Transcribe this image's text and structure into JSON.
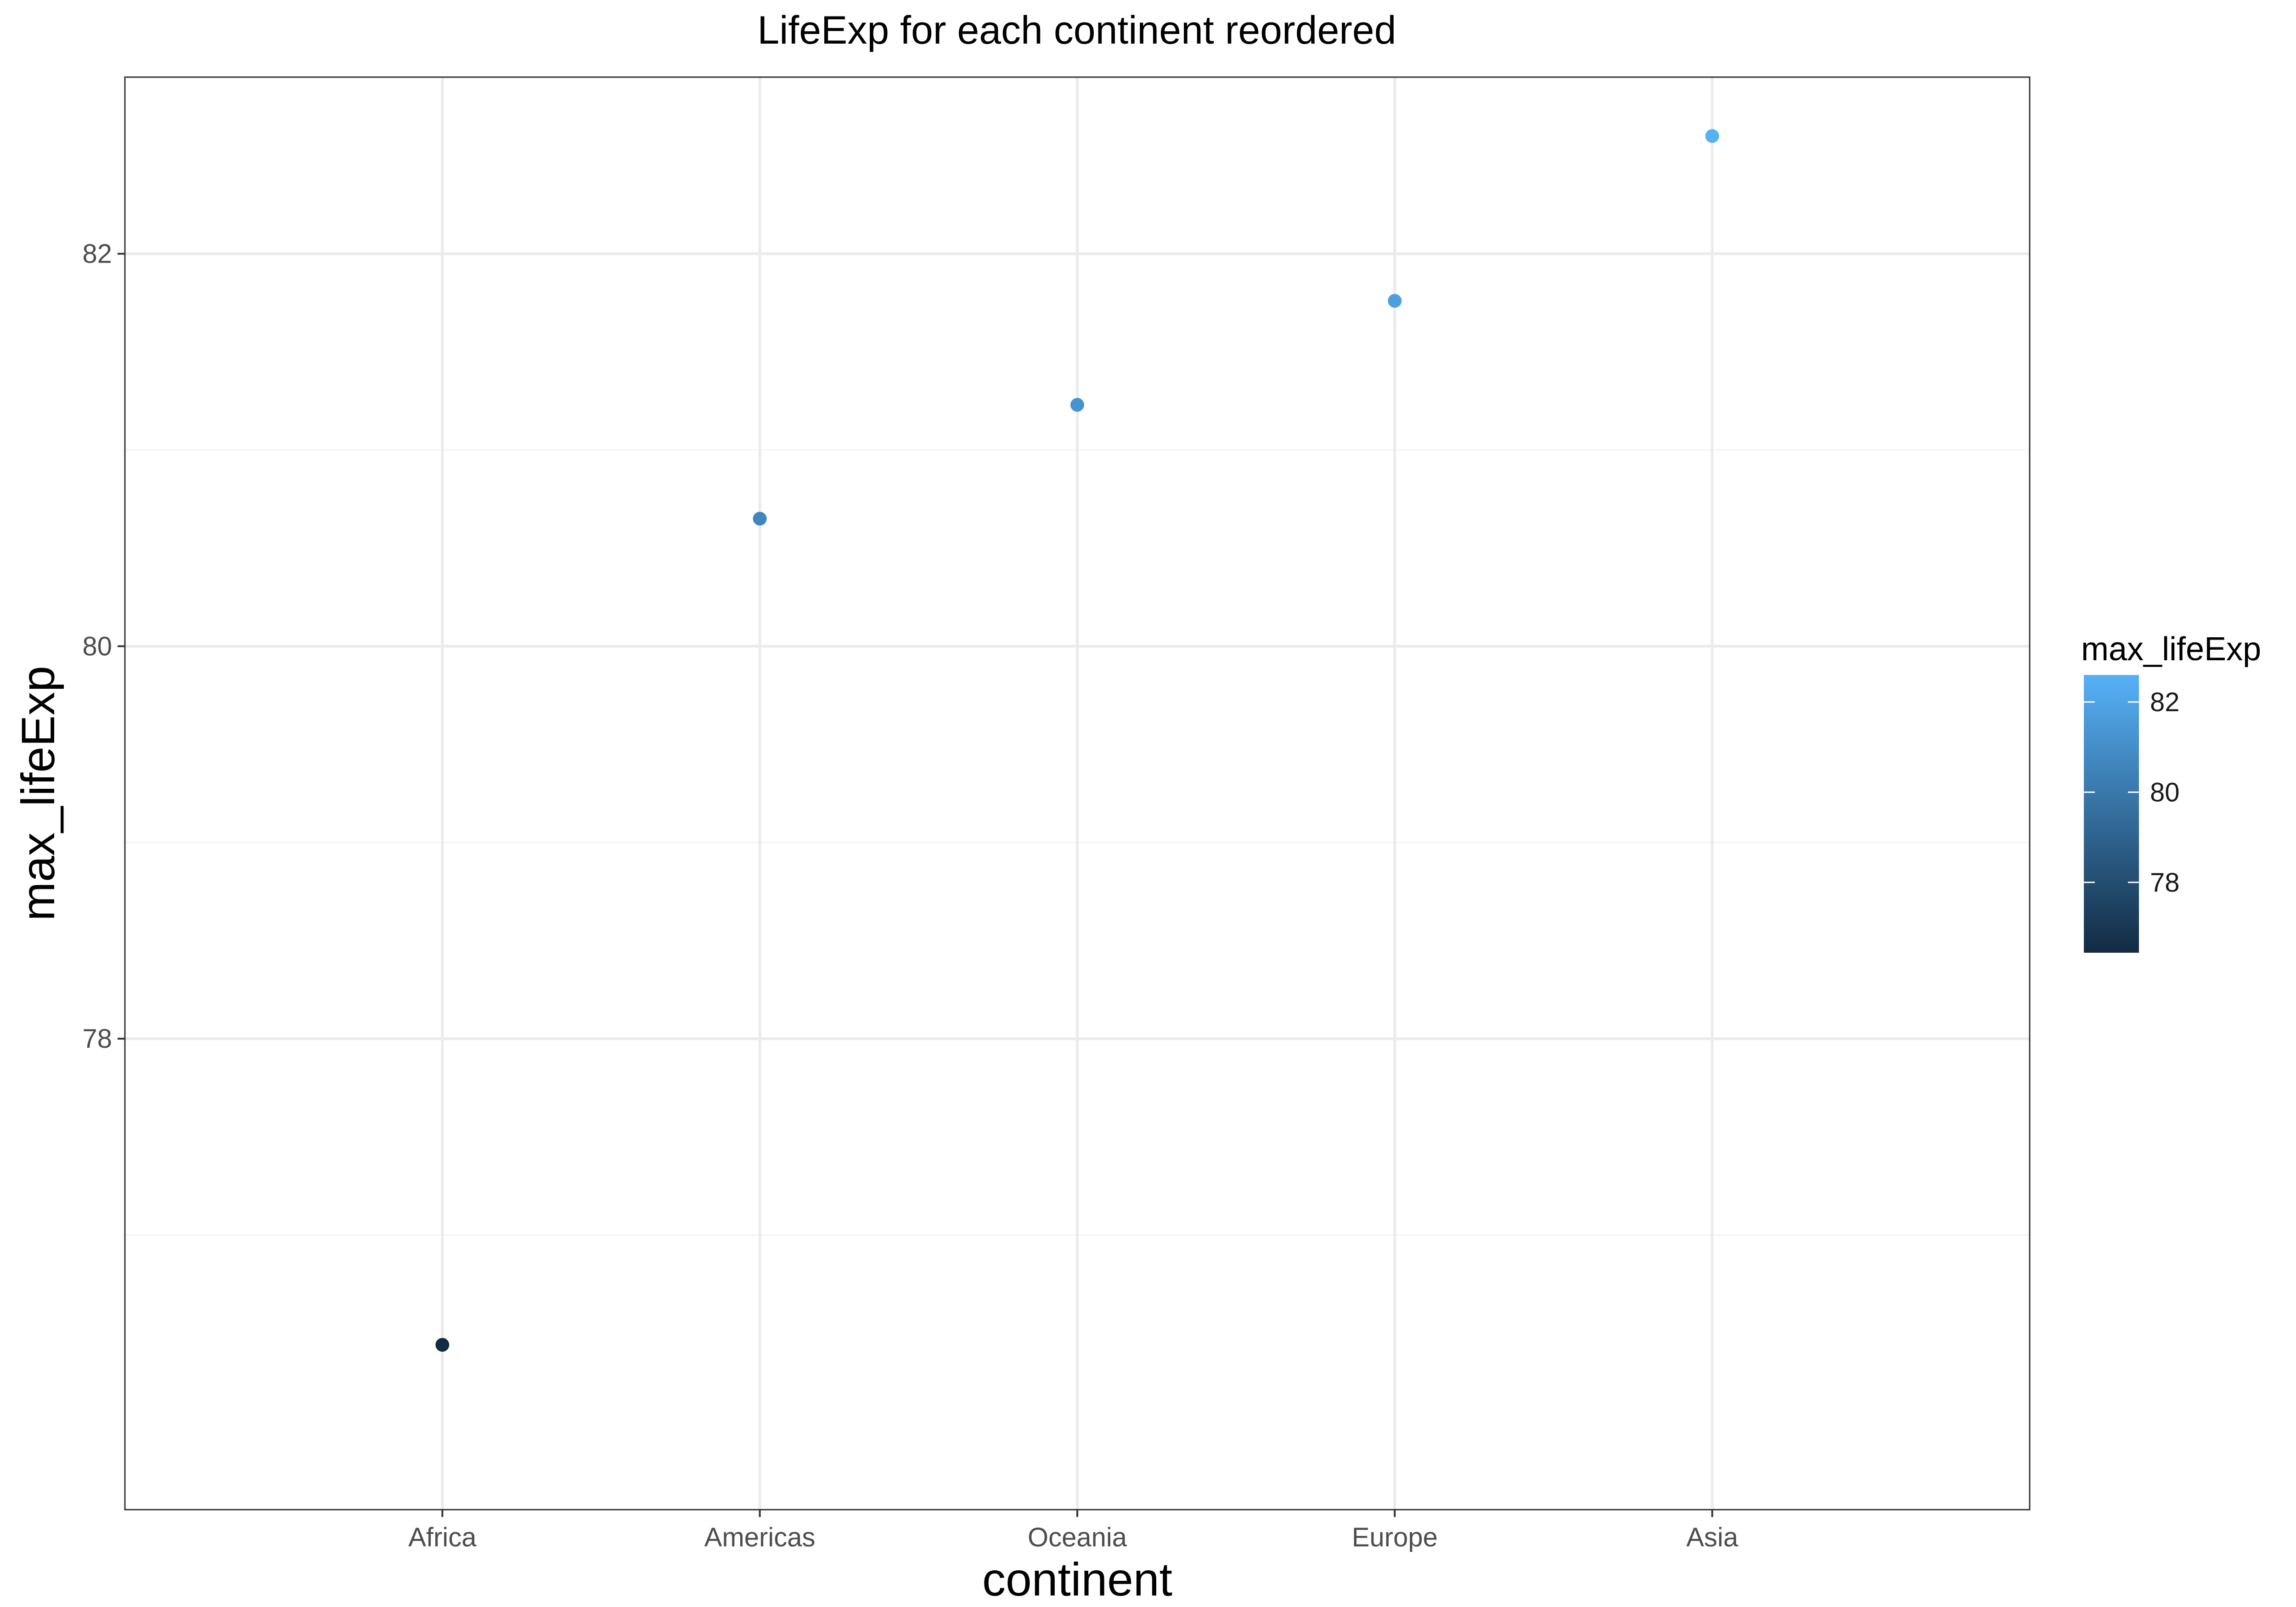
{
  "chart_data": {
    "type": "scatter",
    "title": "LifeExp for each continent reordered",
    "xlabel": "continent",
    "ylabel": "max_lifeExp",
    "categories": [
      "Africa",
      "Americas",
      "Oceania",
      "Europe",
      "Asia"
    ],
    "values": [
      76.44,
      80.65,
      81.23,
      81.76,
      82.6
    ],
    "ylim": [
      75.6,
      82.9
    ],
    "yticks": [
      78,
      80,
      82
    ],
    "grid": true,
    "legend": {
      "title": "max_lifeExp",
      "position": "right",
      "ticks": [
        78,
        80,
        82
      ],
      "range": [
        76.44,
        82.6
      ],
      "low_color": "#132B43",
      "high_color": "#56B1F7"
    }
  },
  "colors": {
    "panel_border": "#333333",
    "grid_major": "#ebebeb",
    "grid_minor": "#f4f4f4"
  }
}
